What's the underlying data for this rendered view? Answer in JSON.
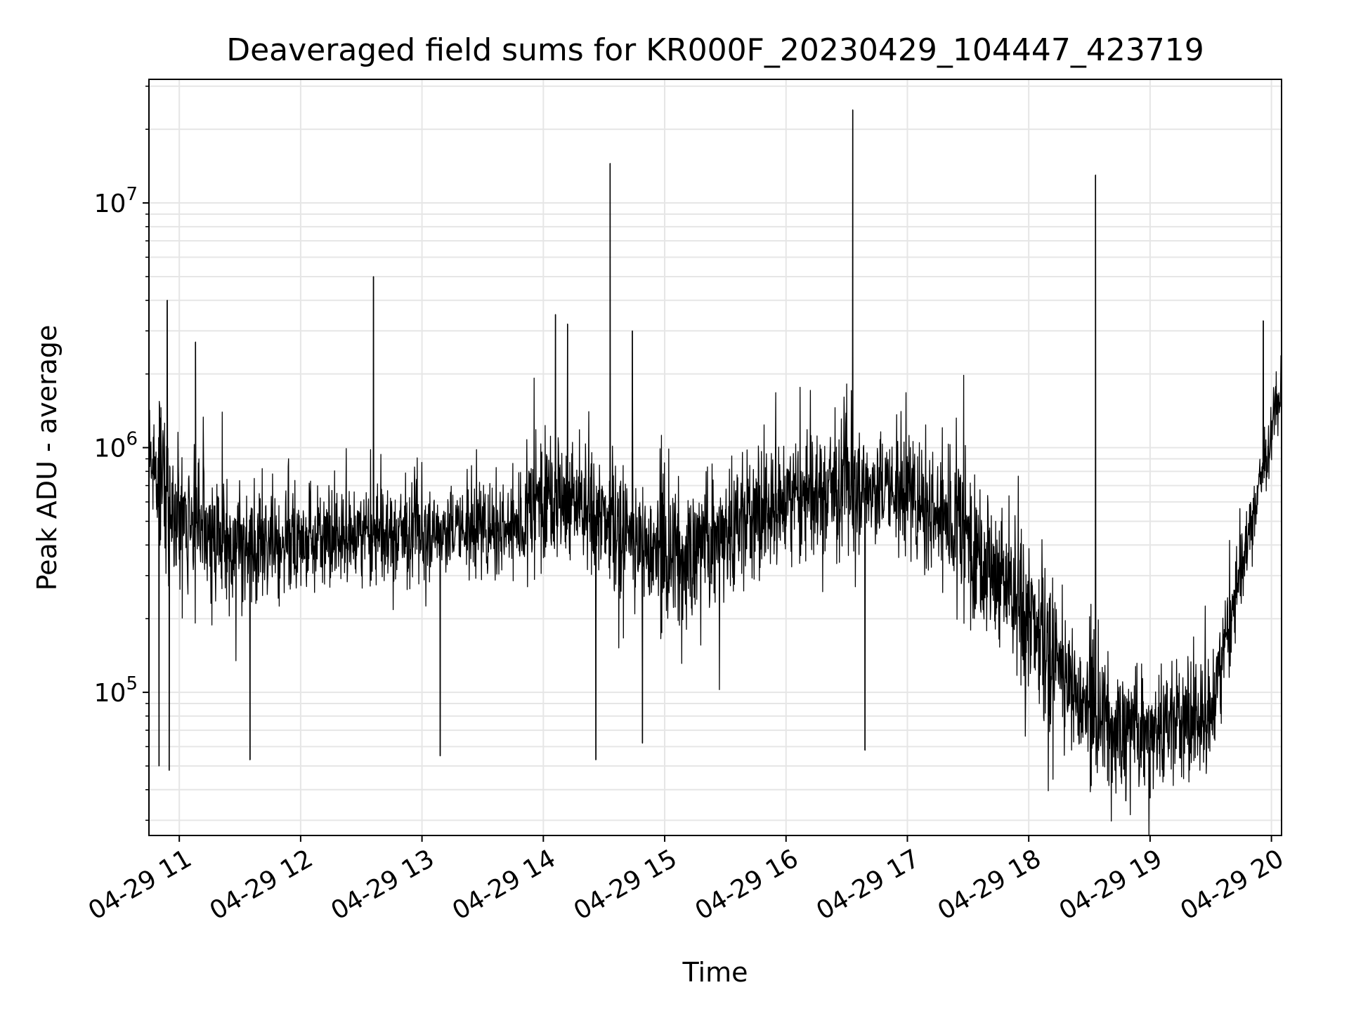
{
  "chart_data": {
    "type": "line",
    "title": "Deaveraged field sums for KR000F_20230429_104447_423719",
    "xlabel": "Time",
    "ylabel": "Peak ADU - average",
    "yscale": "log",
    "ylim": [
      26000,
      32000000
    ],
    "xlim": [
      "2023-04-29 10:45",
      "2023-04-29 20:05"
    ],
    "grid": true,
    "line_color": "#000000",
    "grid_color": "#e6e6e6",
    "x_ticks": [
      {
        "value": "2023-04-29 11:00",
        "label": "04-29 11"
      },
      {
        "value": "2023-04-29 12:00",
        "label": "04-29 12"
      },
      {
        "value": "2023-04-29 13:00",
        "label": "04-29 13"
      },
      {
        "value": "2023-04-29 14:00",
        "label": "04-29 14"
      },
      {
        "value": "2023-04-29 15:00",
        "label": "04-29 15"
      },
      {
        "value": "2023-04-29 16:00",
        "label": "04-29 16"
      },
      {
        "value": "2023-04-29 17:00",
        "label": "04-29 17"
      },
      {
        "value": "2023-04-29 18:00",
        "label": "04-29 18"
      },
      {
        "value": "2023-04-29 19:00",
        "label": "04-29 19"
      },
      {
        "value": "2023-04-29 20:00",
        "label": "04-29 20"
      }
    ],
    "y_ticks": [
      {
        "value": 100000,
        "base": "10",
        "exp": "5"
      },
      {
        "value": 1000000,
        "base": "10",
        "exp": "6"
      },
      {
        "value": 10000000,
        "base": "10",
        "exp": "7"
      }
    ],
    "baseline": [
      {
        "t": "2023-04-29 10:45",
        "median": 1000000,
        "spread": 0.35
      },
      {
        "t": "2023-04-29 11:00",
        "median": 500000,
        "spread": 0.35
      },
      {
        "t": "2023-04-29 11:30",
        "median": 400000,
        "spread": 0.3
      },
      {
        "t": "2023-04-29 12:00",
        "median": 420000,
        "spread": 0.25
      },
      {
        "t": "2023-04-29 13:00",
        "median": 450000,
        "spread": 0.22
      },
      {
        "t": "2023-04-29 13:50",
        "median": 480000,
        "spread": 0.25
      },
      {
        "t": "2023-04-29 14:00",
        "median": 700000,
        "spread": 0.35
      },
      {
        "t": "2023-04-29 14:30",
        "median": 500000,
        "spread": 0.3
      },
      {
        "t": "2023-04-29 15:00",
        "median": 350000,
        "spread": 0.35
      },
      {
        "t": "2023-04-29 15:30",
        "median": 450000,
        "spread": 0.35
      },
      {
        "t": "2023-04-29 16:00",
        "median": 600000,
        "spread": 0.3
      },
      {
        "t": "2023-04-29 16:30",
        "median": 700000,
        "spread": 0.3
      },
      {
        "t": "2023-04-29 17:00",
        "median": 650000,
        "spread": 0.3
      },
      {
        "t": "2023-04-29 17:30",
        "median": 450000,
        "spread": 0.38
      },
      {
        "t": "2023-04-29 18:00",
        "median": 200000,
        "spread": 0.4
      },
      {
        "t": "2023-04-29 18:30",
        "median": 80000,
        "spread": 0.32
      },
      {
        "t": "2023-04-29 19:00",
        "median": 70000,
        "spread": 0.3
      },
      {
        "t": "2023-04-29 19:30",
        "median": 80000,
        "spread": 0.3
      },
      {
        "t": "2023-04-29 19:50",
        "median": 500000,
        "spread": 0.15
      },
      {
        "t": "2023-04-29 20:05",
        "median": 1700000,
        "spread": 0.12
      }
    ],
    "spikes": [
      {
        "t": "2023-04-29 10:54",
        "value": 4000000
      },
      {
        "t": "2023-04-29 11:08",
        "value": 2700000
      },
      {
        "t": "2023-04-29 12:36",
        "value": 5000000
      },
      {
        "t": "2023-04-29 14:06",
        "value": 3500000
      },
      {
        "t": "2023-04-29 14:12",
        "value": 3200000
      },
      {
        "t": "2023-04-29 14:33",
        "value": 14500000
      },
      {
        "t": "2023-04-29 14:44",
        "value": 3000000
      },
      {
        "t": "2023-04-29 16:33",
        "value": 24000000
      },
      {
        "t": "2023-04-29 18:33",
        "value": 13000000
      },
      {
        "t": "2023-04-29 19:56",
        "value": 3300000
      }
    ],
    "dips": [
      {
        "t": "2023-04-29 10:50",
        "value": 50000
      },
      {
        "t": "2023-04-29 10:55",
        "value": 48000
      },
      {
        "t": "2023-04-29 11:35",
        "value": 53000
      },
      {
        "t": "2023-04-29 13:09",
        "value": 55000
      },
      {
        "t": "2023-04-29 14:26",
        "value": 53000
      },
      {
        "t": "2023-04-29 14:49",
        "value": 62000
      },
      {
        "t": "2023-04-29 16:39",
        "value": 58000
      },
      {
        "t": "2023-04-29 18:48",
        "value": 36000
      },
      {
        "t": "2023-04-29 19:00",
        "value": 37000
      }
    ]
  }
}
